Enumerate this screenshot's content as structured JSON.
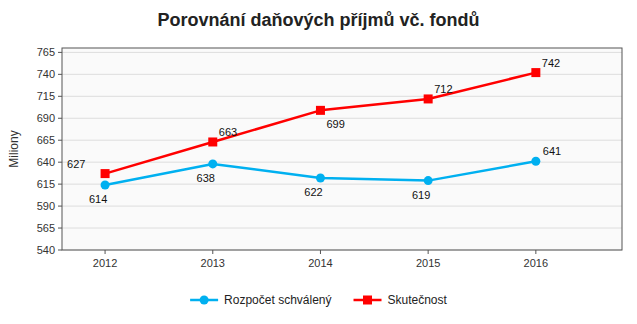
{
  "chart_data": {
    "type": "line",
    "title": "Porovnání daňových příjmů vč. fondů",
    "y_label": "Miliony",
    "x": [
      2012,
      2013,
      2014,
      2015,
      2016
    ],
    "xlim": [
      2011.6,
      2016.8
    ],
    "xticks": [
      2012,
      2013,
      2014,
      2015,
      2016
    ],
    "ylim": [
      540,
      770
    ],
    "yticks": [
      540,
      565,
      590,
      615,
      640,
      665,
      690,
      715,
      740,
      765
    ],
    "grid": true,
    "legend": "bottom",
    "data_labels": true,
    "series": [
      {
        "name": "Rozpočet  schválený",
        "color": "#00b0f0",
        "marker": "circle",
        "line_style": "solid",
        "values": [
          614,
          638,
          622,
          619,
          641
        ]
      },
      {
        "name": "Skutečnost",
        "color": "#ff0000",
        "marker": "square",
        "line_style": "solid",
        "values": [
          627,
          663,
          699,
          712,
          742
        ]
      }
    ]
  }
}
